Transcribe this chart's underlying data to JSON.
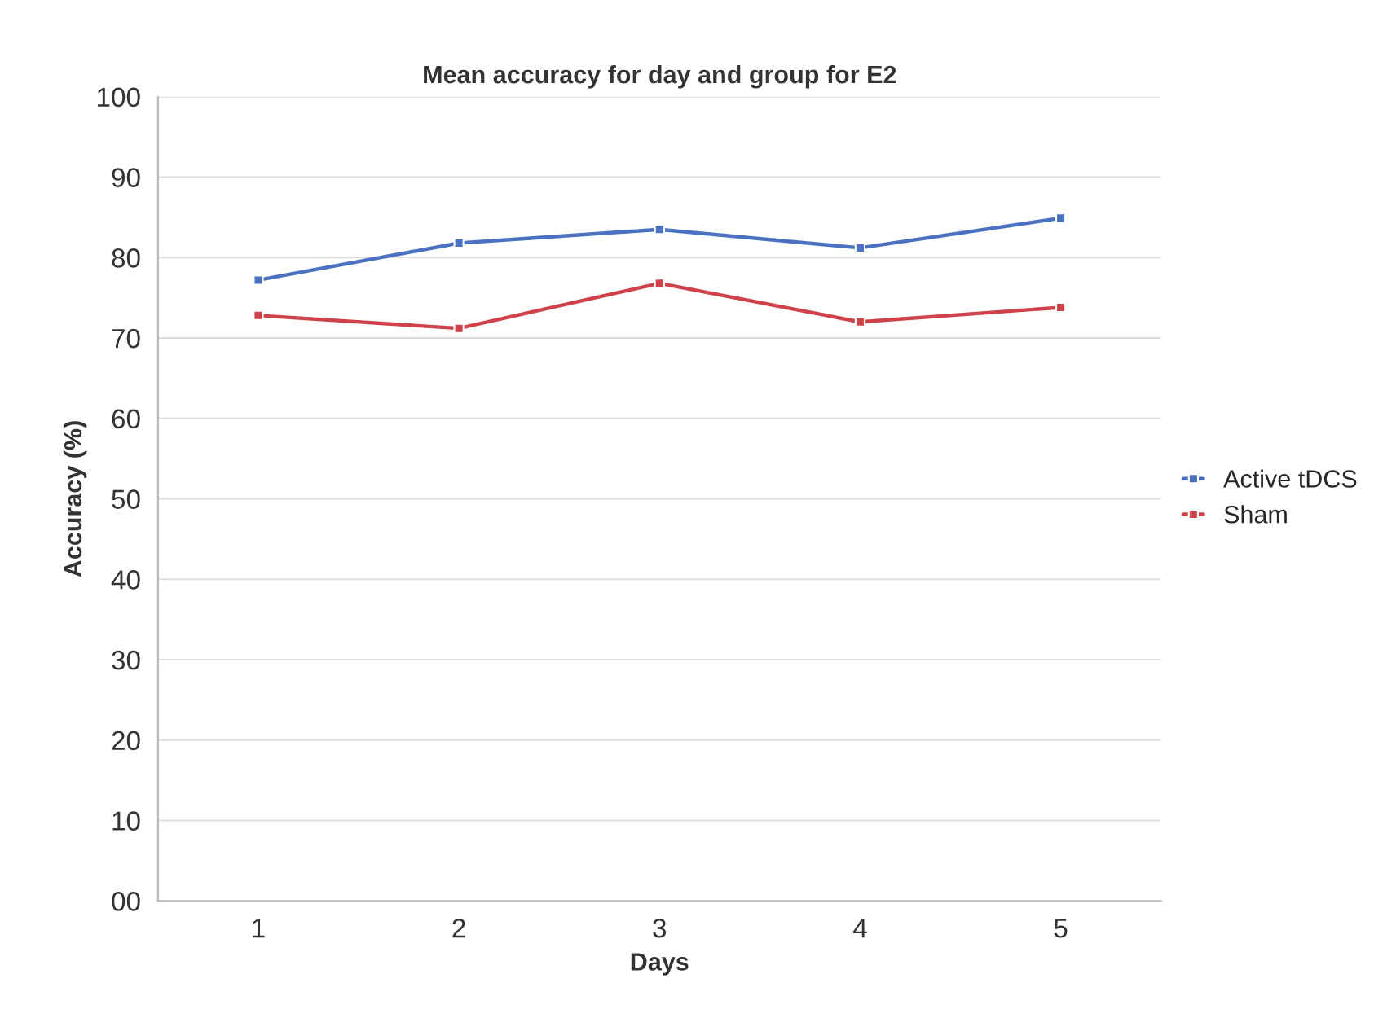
{
  "chart_data": {
    "type": "line",
    "title": "Mean accuracy for day and group for E2",
    "xlabel": "Days",
    "ylabel": "Accuracy (%)",
    "categories": [
      "1",
      "2",
      "3",
      "4",
      "5"
    ],
    "series": [
      {
        "name": "Active tDCS",
        "color": "#4a72c0",
        "values": [
          77.2,
          81.8,
          83.5,
          81.2,
          84.9
        ]
      },
      {
        "name": "Sham",
        "color": "#d0424a",
        "values": [
          72.8,
          71.2,
          76.8,
          72.0,
          73.8
        ]
      }
    ],
    "ylim": [
      0,
      100
    ],
    "yticks": [
      {
        "value": 0,
        "label": "00"
      },
      10,
      20,
      30,
      40,
      50,
      60,
      70,
      80,
      90,
      100
    ],
    "grid": "y",
    "legend": "right",
    "marker": "square",
    "line_style": "solid"
  }
}
